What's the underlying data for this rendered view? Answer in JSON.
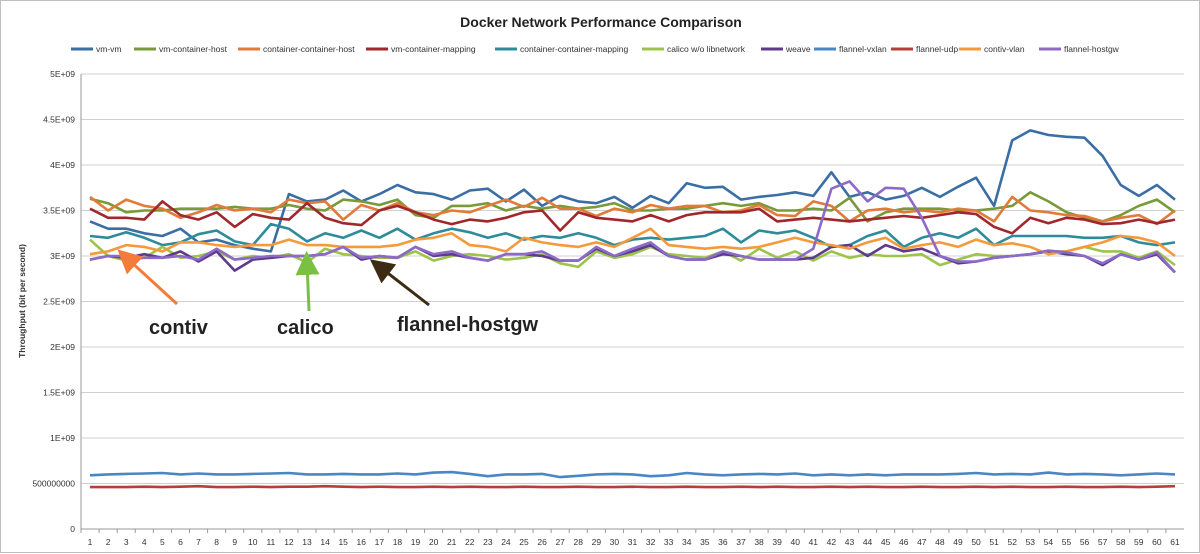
{
  "chart_data": {
    "type": "line",
    "title": "Docker Network Performance Comparison",
    "xlabel": "",
    "ylabel": "Throughput (bit per second)",
    "ylim": [
      0,
      5000000000
    ],
    "y_ticks": [
      {
        "value": 0,
        "label": "0"
      },
      {
        "value": 500000000,
        "label": "500000000"
      },
      {
        "value": 1000000000,
        "label": "1E+09"
      },
      {
        "value": 1500000000,
        "label": "1.5E+09"
      },
      {
        "value": 2000000000,
        "label": "2E+09"
      },
      {
        "value": 2500000000,
        "label": "2.5E+09"
      },
      {
        "value": 3000000000,
        "label": "3E+09"
      },
      {
        "value": 3500000000,
        "label": "3.5E+09"
      },
      {
        "value": 4000000000,
        "label": "4E+09"
      },
      {
        "value": 4500000000,
        "label": "4.5E+09"
      },
      {
        "value": 5000000000,
        "label": "5E+09"
      }
    ],
    "grid": true,
    "legend_position": "top",
    "annotations": [
      {
        "text": "contiv",
        "color": "#f47b3a",
        "x": 3,
        "y": 3050000000
      },
      {
        "text": "calico",
        "color": "#7ac143",
        "x": 13,
        "y": 2990000000
      },
      {
        "text": "flannel-hostgw",
        "color": "#3d2b14",
        "x": 17,
        "y": 2950000000
      }
    ],
    "series": [
      {
        "name": "vm-vm",
        "color": "#3a6ea5",
        "values": [
          3.38,
          3.3,
          3.3,
          3.25,
          3.22,
          3.3,
          3.15,
          3.18,
          3.12,
          3.08,
          3.05,
          3.68,
          3.6,
          3.62,
          3.72,
          3.6,
          3.68,
          3.78,
          3.7,
          3.68,
          3.62,
          3.72,
          3.74,
          3.6,
          3.73,
          3.55,
          3.66,
          3.6,
          3.58,
          3.65,
          3.53,
          3.66,
          3.58,
          3.8,
          3.75,
          3.76,
          3.62,
          3.65,
          3.67,
          3.7,
          3.66,
          3.92,
          3.65,
          3.7,
          3.62,
          3.66,
          3.75,
          3.65,
          3.76,
          3.86,
          3.55,
          4.27,
          4.38,
          4.33,
          4.31,
          4.3,
          4.1,
          3.78,
          3.66,
          3.78,
          3.62
        ]
      },
      {
        "name": "vm-container-host",
        "color": "#7a9a3a",
        "values": [
          3.63,
          3.58,
          3.48,
          3.5,
          3.5,
          3.52,
          3.52,
          3.52,
          3.54,
          3.52,
          3.52,
          3.56,
          3.52,
          3.5,
          3.62,
          3.6,
          3.56,
          3.62,
          3.45,
          3.42,
          3.55,
          3.55,
          3.58,
          3.5,
          3.55,
          3.52,
          3.55,
          3.52,
          3.54,
          3.58,
          3.5,
          3.5,
          3.52,
          3.52,
          3.55,
          3.58,
          3.55,
          3.58,
          3.5,
          3.5,
          3.52,
          3.5,
          3.64,
          3.38,
          3.48,
          3.52,
          3.52,
          3.52,
          3.5,
          3.5,
          3.52,
          3.55,
          3.7,
          3.6,
          3.48,
          3.42,
          3.38,
          3.45,
          3.55,
          3.62,
          3.48
        ]
      },
      {
        "name": "container-container-host",
        "color": "#e07b39",
        "values": [
          3.65,
          3.5,
          3.62,
          3.55,
          3.52,
          3.42,
          3.48,
          3.56,
          3.5,
          3.52,
          3.48,
          3.62,
          3.58,
          3.6,
          3.4,
          3.56,
          3.5,
          3.58,
          3.48,
          3.45,
          3.5,
          3.48,
          3.55,
          3.62,
          3.54,
          3.64,
          3.52,
          3.52,
          3.44,
          3.52,
          3.48,
          3.56,
          3.52,
          3.55,
          3.55,
          3.48,
          3.5,
          3.56,
          3.45,
          3.44,
          3.6,
          3.55,
          3.38,
          3.5,
          3.52,
          3.48,
          3.5,
          3.48,
          3.52,
          3.5,
          3.38,
          3.65,
          3.5,
          3.48,
          3.45,
          3.44,
          3.38,
          3.42,
          3.45,
          3.35,
          3.5
        ]
      },
      {
        "name": "vm-container-mapping",
        "color": "#a0282c",
        "values": [
          3.52,
          3.42,
          3.42,
          3.4,
          3.6,
          3.45,
          3.4,
          3.48,
          3.32,
          3.46,
          3.42,
          3.4,
          3.58,
          3.42,
          3.36,
          3.34,
          3.5,
          3.55,
          3.48,
          3.4,
          3.35,
          3.4,
          3.38,
          3.42,
          3.48,
          3.5,
          3.28,
          3.48,
          3.42,
          3.4,
          3.38,
          3.45,
          3.38,
          3.45,
          3.48,
          3.48,
          3.48,
          3.52,
          3.38,
          3.4,
          3.42,
          3.4,
          3.38,
          3.4,
          3.42,
          3.44,
          3.42,
          3.45,
          3.48,
          3.46,
          3.32,
          3.25,
          3.42,
          3.36,
          3.42,
          3.4,
          3.35,
          3.36,
          3.4,
          3.36,
          3.4
        ]
      },
      {
        "name": "container-container-mapping",
        "color": "#2e8b9a",
        "values": [
          3.22,
          3.2,
          3.26,
          3.2,
          3.12,
          3.15,
          3.24,
          3.28,
          3.16,
          3.12,
          3.35,
          3.3,
          3.16,
          3.25,
          3.2,
          3.28,
          3.2,
          3.3,
          3.18,
          3.25,
          3.3,
          3.26,
          3.2,
          3.25,
          3.18,
          3.22,
          3.2,
          3.25,
          3.2,
          3.12,
          3.18,
          3.2,
          3.18,
          3.2,
          3.22,
          3.3,
          3.15,
          3.28,
          3.25,
          3.28,
          3.2,
          3.1,
          3.12,
          3.22,
          3.28,
          3.1,
          3.2,
          3.25,
          3.2,
          3.3,
          3.12,
          3.22,
          3.22,
          3.22,
          3.22,
          3.2,
          3.2,
          3.22,
          3.15,
          3.12,
          3.15
        ]
      },
      {
        "name": "calico w/o libnetwork",
        "color": "#9cc44a",
        "values": [
          3.18,
          3.0,
          2.95,
          2.98,
          3.1,
          2.98,
          3.0,
          3.05,
          2.96,
          3.0,
          2.98,
          3.02,
          2.93,
          3.08,
          3.02,
          3.0,
          2.98,
          2.98,
          3.05,
          2.95,
          3.0,
          3.02,
          3.0,
          2.96,
          2.98,
          3.02,
          2.92,
          2.88,
          3.05,
          2.98,
          3.02,
          3.1,
          3.02,
          3.0,
          2.98,
          3.05,
          2.95,
          3.08,
          2.98,
          3.05,
          2.95,
          3.05,
          2.98,
          3.02,
          3.0,
          3.0,
          3.02,
          2.9,
          2.96,
          3.02,
          3.0,
          3.0,
          3.02,
          3.05,
          3.05,
          3.1,
          3.05,
          3.05,
          2.98,
          3.05,
          2.9
        ]
      },
      {
        "name": "weave",
        "color": "#5e3b8a",
        "values": [
          2.96,
          3.0,
          2.98,
          3.02,
          2.98,
          3.05,
          2.94,
          3.05,
          2.84,
          2.96,
          2.98,
          3.0,
          3.0,
          3.02,
          3.1,
          2.96,
          3.0,
          2.98,
          3.1,
          3.0,
          3.02,
          2.98,
          2.95,
          3.02,
          3.02,
          3.0,
          2.95,
          2.95,
          3.08,
          3.0,
          3.05,
          3.12,
          3.0,
          2.96,
          2.96,
          3.02,
          3.0,
          2.96,
          2.96,
          2.96,
          2.98,
          3.1,
          3.12,
          3.0,
          3.12,
          3.05,
          3.08,
          3.0,
          2.92,
          2.94,
          2.98,
          3.0,
          3.02,
          3.05,
          3.02,
          3.0,
          2.9,
          3.02,
          2.96,
          3.02,
          2.82
        ]
      },
      {
        "name": "flannel-vxlan",
        "color": "#4a86c5",
        "values": [
          0.59,
          0.6,
          0.605,
          0.61,
          0.615,
          0.6,
          0.61,
          0.6,
          0.6,
          0.605,
          0.61,
          0.615,
          0.6,
          0.6,
          0.605,
          0.6,
          0.6,
          0.61,
          0.6,
          0.62,
          0.625,
          0.605,
          0.58,
          0.6,
          0.6,
          0.605,
          0.57,
          0.585,
          0.6,
          0.605,
          0.6,
          0.58,
          0.59,
          0.615,
          0.6,
          0.59,
          0.6,
          0.605,
          0.6,
          0.61,
          0.59,
          0.6,
          0.59,
          0.6,
          0.59,
          0.6,
          0.6,
          0.6,
          0.605,
          0.615,
          0.6,
          0.605,
          0.6,
          0.62,
          0.6,
          0.605,
          0.6,
          0.59,
          0.6,
          0.61,
          0.6
        ]
      },
      {
        "name": "flannel-udp",
        "color": "#b5403a",
        "values": [
          0.46,
          0.46,
          0.46,
          0.465,
          0.46,
          0.465,
          0.47,
          0.46,
          0.46,
          0.465,
          0.46,
          0.465,
          0.465,
          0.47,
          0.465,
          0.46,
          0.465,
          0.46,
          0.46,
          0.465,
          0.46,
          0.465,
          0.46,
          0.46,
          0.465,
          0.46,
          0.46,
          0.465,
          0.46,
          0.46,
          0.465,
          0.46,
          0.46,
          0.465,
          0.46,
          0.46,
          0.465,
          0.46,
          0.465,
          0.46,
          0.46,
          0.465,
          0.46,
          0.465,
          0.46,
          0.46,
          0.465,
          0.46,
          0.46,
          0.465,
          0.46,
          0.465,
          0.46,
          0.46,
          0.465,
          0.46,
          0.46,
          0.465,
          0.46,
          0.465,
          0.47
        ]
      },
      {
        "name": "contiv-vlan",
        "color": "#f49a3c",
        "values": [
          3.02,
          3.05,
          3.12,
          3.1,
          3.05,
          3.15,
          3.15,
          3.12,
          3.1,
          3.12,
          3.12,
          3.18,
          3.12,
          3.12,
          3.1,
          3.1,
          3.1,
          3.12,
          3.18,
          3.2,
          3.25,
          3.12,
          3.1,
          3.05,
          3.2,
          3.15,
          3.12,
          3.1,
          3.15,
          3.1,
          3.2,
          3.3,
          3.12,
          3.1,
          3.08,
          3.1,
          3.08,
          3.1,
          3.15,
          3.2,
          3.15,
          3.12,
          3.08,
          3.15,
          3.2,
          3.08,
          3.12,
          3.15,
          3.1,
          3.18,
          3.12,
          3.14,
          3.1,
          3.02,
          3.05,
          3.1,
          3.15,
          3.22,
          3.2,
          3.15,
          3.0
        ]
      },
      {
        "name": "flannel-hostgw",
        "color": "#8e6ac8",
        "values": [
          2.96,
          3.0,
          3.0,
          2.98,
          2.98,
          3.0,
          2.96,
          3.08,
          2.96,
          2.98,
          3.0,
          3.0,
          3.0,
          3.02,
          3.1,
          2.98,
          3.0,
          2.98,
          3.1,
          3.02,
          3.05,
          2.98,
          2.95,
          3.02,
          3.02,
          3.05,
          2.95,
          2.95,
          3.1,
          3.0,
          3.08,
          3.15,
          3.0,
          2.96,
          2.96,
          3.05,
          3.0,
          2.96,
          2.96,
          2.96,
          3.08,
          3.74,
          3.82,
          3.6,
          3.75,
          3.74,
          3.42,
          3.0,
          2.94,
          2.94,
          2.98,
          3.0,
          3.02,
          3.06,
          3.04,
          3.0,
          2.92,
          3.02,
          2.96,
          3.04,
          2.82
        ]
      }
    ],
    "x": [
      1,
      2,
      3,
      4,
      5,
      6,
      7,
      8,
      9,
      10,
      11,
      12,
      13,
      14,
      15,
      16,
      17,
      18,
      19,
      20,
      21,
      22,
      23,
      24,
      25,
      26,
      27,
      28,
      29,
      30,
      31,
      32,
      33,
      34,
      35,
      36,
      37,
      38,
      39,
      40,
      41,
      42,
      43,
      44,
      45,
      46,
      47,
      48,
      49,
      50,
      51,
      52,
      53,
      54,
      55,
      56,
      57,
      58,
      59,
      60,
      61
    ],
    "values_unit_scale": 1000000000
  }
}
